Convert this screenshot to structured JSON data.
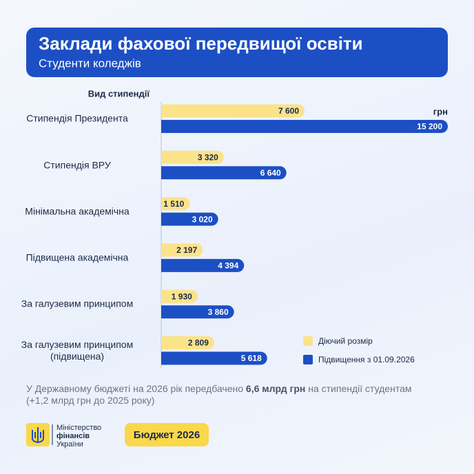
{
  "header": {
    "title": "Заклади фахової передвищої освіти",
    "subtitle": "Студенти коледжів"
  },
  "chart_data": {
    "type": "bar",
    "orientation": "horizontal",
    "axis_label": "Вид стипендії",
    "unit": "грн",
    "categories": [
      "Стипендія Президента",
      "Стипендія ВРУ",
      "Мінімальна академічна",
      "Підвищена академічна",
      "За галузевим принципом",
      "За галузевим принципом\n(підвищена)"
    ],
    "series": [
      {
        "name": "Діючий розмір",
        "color": "#fbe38a",
        "values": [
          7600,
          3320,
          1510,
          2197,
          1930,
          2809
        ],
        "value_labels": [
          "7 600",
          "3 320",
          "1 510",
          "2 197",
          "1 930",
          "2 809"
        ]
      },
      {
        "name": "Підвищення з 01.09.2026",
        "color": "#1d4fc4",
        "values": [
          15200,
          6640,
          3020,
          4394,
          3860,
          5618
        ],
        "value_labels": [
          "15 200",
          "6 640",
          "3 020",
          "4 394",
          "3 860",
          "5 618"
        ]
      }
    ],
    "xlim": [
      0,
      15200
    ]
  },
  "footer": {
    "before": "У Державному бюджеті на 2026 рік передбачено ",
    "bold": "6,6 млрд грн",
    "after": " на стипендії студентам",
    "line2": "(+1,2 млрд грн до 2025 року)"
  },
  "logo": {
    "line1": "Міністерство",
    "line2": "фінансів",
    "line3": "України"
  },
  "badge": "Бюджет 2026"
}
